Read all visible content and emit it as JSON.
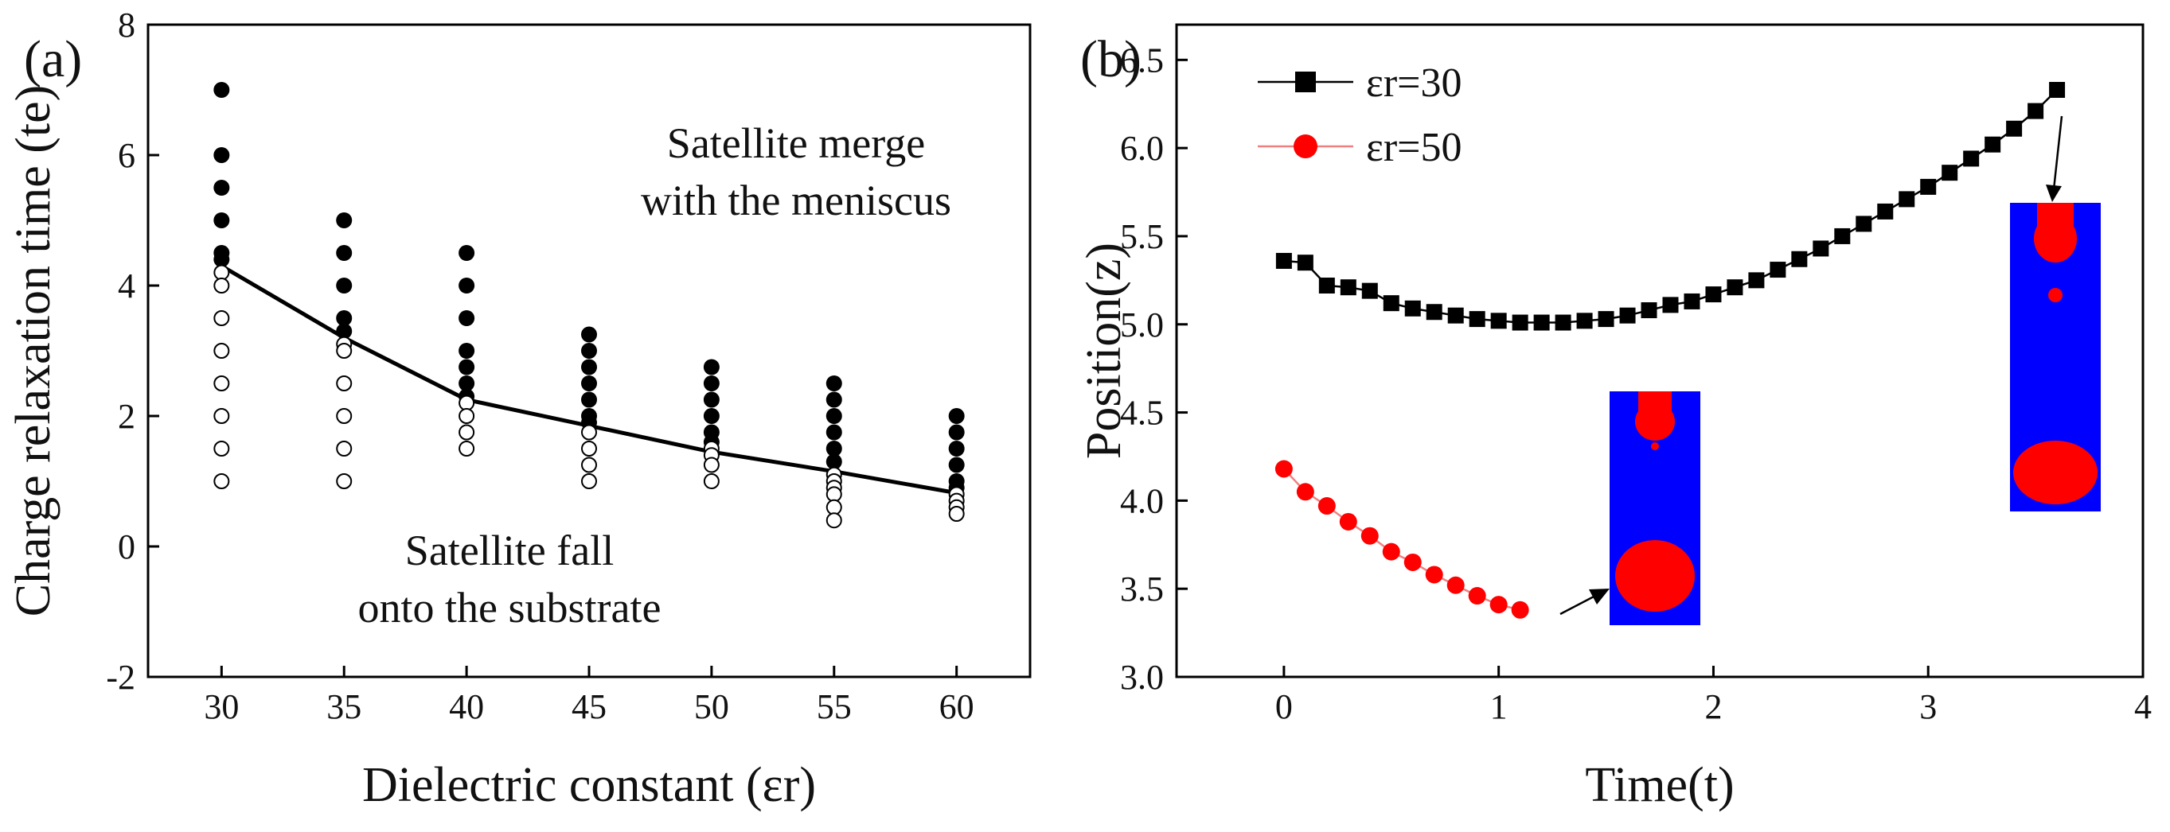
{
  "chart_data": [
    {
      "panel": "(a)",
      "type": "scatter",
      "xlabel": "Dielectric constant (εr)",
      "ylabel": "Charge relaxation time (te)",
      "xlim": [
        27,
        63
      ],
      "ylim": [
        -2,
        8
      ],
      "xticks": [
        30,
        35,
        40,
        45,
        50,
        55,
        60
      ],
      "yticks": [
        -2,
        0,
        2,
        4,
        6,
        8
      ],
      "grid": false,
      "annotations": [
        "Satellite merge",
        "with the meniscus",
        "Satellite fall",
        "onto the substrate"
      ],
      "series": [
        {
          "marker": "filled-circle",
          "color": "#000000",
          "points": [
            {
              "x": 30,
              "y": 7
            },
            {
              "x": 30,
              "y": 6
            },
            {
              "x": 30,
              "y": 5.5
            },
            {
              "x": 30,
              "y": 5
            },
            {
              "x": 30,
              "y": 4.5
            },
            {
              "x": 30,
              "y": 4.4
            },
            {
              "x": 35,
              "y": 5
            },
            {
              "x": 35,
              "y": 4.5
            },
            {
              "x": 35,
              "y": 4
            },
            {
              "x": 35,
              "y": 3.5
            },
            {
              "x": 35,
              "y": 3.3
            },
            {
              "x": 40,
              "y": 4.5
            },
            {
              "x": 40,
              "y": 4
            },
            {
              "x": 40,
              "y": 3.5
            },
            {
              "x": 40,
              "y": 3
            },
            {
              "x": 40,
              "y": 2.75
            },
            {
              "x": 40,
              "y": 2.5
            },
            {
              "x": 40,
              "y": 2.3
            },
            {
              "x": 45,
              "y": 3.25
            },
            {
              "x": 45,
              "y": 3
            },
            {
              "x": 45,
              "y": 2.75
            },
            {
              "x": 45,
              "y": 2.5
            },
            {
              "x": 45,
              "y": 2.25
            },
            {
              "x": 45,
              "y": 2
            },
            {
              "x": 45,
              "y": 1.9
            },
            {
              "x": 50,
              "y": 2.75
            },
            {
              "x": 50,
              "y": 2.5
            },
            {
              "x": 50,
              "y": 2.25
            },
            {
              "x": 50,
              "y": 2
            },
            {
              "x": 50,
              "y": 1.75
            },
            {
              "x": 50,
              "y": 1.6
            },
            {
              "x": 55,
              "y": 2.5
            },
            {
              "x": 55,
              "y": 2.25
            },
            {
              "x": 55,
              "y": 2
            },
            {
              "x": 55,
              "y": 1.75
            },
            {
              "x": 55,
              "y": 1.5
            },
            {
              "x": 55,
              "y": 1.3
            },
            {
              "x": 60,
              "y": 2
            },
            {
              "x": 60,
              "y": 1.75
            },
            {
              "x": 60,
              "y": 1.5
            },
            {
              "x": 60,
              "y": 1.25
            },
            {
              "x": 60,
              "y": 1
            },
            {
              "x": 60,
              "y": 0.9
            }
          ]
        },
        {
          "marker": "open-circle",
          "color": "#000000",
          "points": [
            {
              "x": 30,
              "y": 4.2
            },
            {
              "x": 30,
              "y": 4
            },
            {
              "x": 30,
              "y": 3.5
            },
            {
              "x": 30,
              "y": 3
            },
            {
              "x": 30,
              "y": 2.5
            },
            {
              "x": 30,
              "y": 2
            },
            {
              "x": 30,
              "y": 1.5
            },
            {
              "x": 30,
              "y": 1
            },
            {
              "x": 35,
              "y": 3.1
            },
            {
              "x": 35,
              "y": 3
            },
            {
              "x": 35,
              "y": 2.5
            },
            {
              "x": 35,
              "y": 2
            },
            {
              "x": 35,
              "y": 1.5
            },
            {
              "x": 35,
              "y": 1
            },
            {
              "x": 40,
              "y": 2.2
            },
            {
              "x": 40,
              "y": 2
            },
            {
              "x": 40,
              "y": 1.75
            },
            {
              "x": 40,
              "y": 1.5
            },
            {
              "x": 45,
              "y": 1.75
            },
            {
              "x": 45,
              "y": 1.5
            },
            {
              "x": 45,
              "y": 1.25
            },
            {
              "x": 45,
              "y": 1
            },
            {
              "x": 50,
              "y": 1.5
            },
            {
              "x": 50,
              "y": 1.4
            },
            {
              "x": 50,
              "y": 1.25
            },
            {
              "x": 50,
              "y": 1
            },
            {
              "x": 55,
              "y": 1.1
            },
            {
              "x": 55,
              "y": 1
            },
            {
              "x": 55,
              "y": 0.9
            },
            {
              "x": 55,
              "y": 0.8
            },
            {
              "x": 55,
              "y": 0.6
            },
            {
              "x": 55,
              "y": 0.4
            },
            {
              "x": 60,
              "y": 0.8
            },
            {
              "x": 60,
              "y": 0.7
            },
            {
              "x": 60,
              "y": 0.6
            },
            {
              "x": 60,
              "y": 0.5
            }
          ]
        },
        {
          "marker": "line",
          "color": "#000000",
          "points": [
            {
              "x": 30,
              "y": 4.3
            },
            {
              "x": 35,
              "y": 3.2
            },
            {
              "x": 40,
              "y": 2.25
            },
            {
              "x": 45,
              "y": 1.85
            },
            {
              "x": 50,
              "y": 1.45
            },
            {
              "x": 55,
              "y": 1.15
            },
            {
              "x": 60,
              "y": 0.82
            }
          ]
        }
      ]
    },
    {
      "panel": "(b)",
      "type": "line",
      "xlabel": "Time(t)",
      "ylabel": "Position(z)",
      "xlim": [
        -0.5,
        4
      ],
      "ylim": [
        3.0,
        6.7
      ],
      "xticks": [
        0,
        1,
        2,
        3,
        4
      ],
      "yticks": [
        3.0,
        3.5,
        4.0,
        4.5,
        5.0,
        5.5,
        6.0,
        6.5
      ],
      "grid": false,
      "legend": "top-left",
      "series": [
        {
          "name": "εr=30",
          "marker": "square",
          "color": "#000000",
          "x": [
            0,
            0.1,
            0.2,
            0.3,
            0.4,
            0.5,
            0.6,
            0.7,
            0.8,
            0.9,
            1.0,
            1.1,
            1.2,
            1.3,
            1.4,
            1.5,
            1.6,
            1.7,
            1.8,
            1.9,
            2.0,
            2.1,
            2.2,
            2.3,
            2.4,
            2.5,
            2.6,
            2.7,
            2.8,
            2.9,
            3.0,
            3.1,
            3.2,
            3.3,
            3.4,
            3.5,
            3.6
          ],
          "y": [
            5.36,
            5.35,
            5.22,
            5.21,
            5.19,
            5.12,
            5.09,
            5.07,
            5.05,
            5.03,
            5.02,
            5.01,
            5.01,
            5.01,
            5.02,
            5.03,
            5.05,
            5.08,
            5.11,
            5.13,
            5.17,
            5.21,
            5.25,
            5.31,
            5.37,
            5.43,
            5.5,
            5.57,
            5.64,
            5.71,
            5.78,
            5.86,
            5.94,
            6.02,
            6.11,
            6.21,
            6.33
          ]
        },
        {
          "name": "εr=50",
          "marker": "circle",
          "color": "#ff0000",
          "x": [
            0,
            0.1,
            0.2,
            0.3,
            0.4,
            0.5,
            0.6,
            0.7,
            0.8,
            0.9,
            1.0,
            1.1
          ],
          "y": [
            4.18,
            4.05,
            3.97,
            3.88,
            3.8,
            3.71,
            3.65,
            3.58,
            3.52,
            3.46,
            3.41,
            3.38
          ]
        }
      ]
    }
  ]
}
